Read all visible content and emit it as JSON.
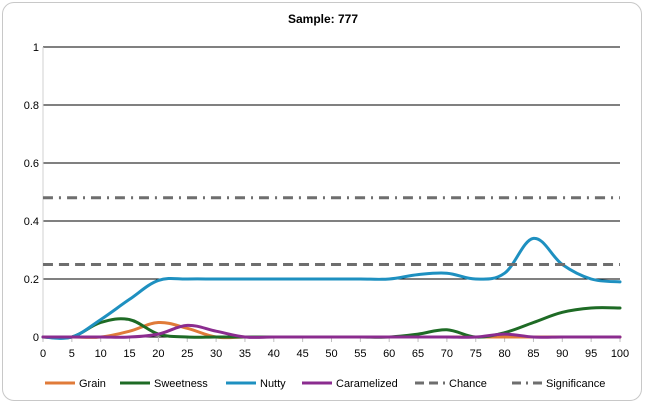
{
  "chart_data": {
    "type": "line",
    "title": "Sample: 777",
    "xlabel": "",
    "ylabel": "",
    "xlim": [
      0,
      100
    ],
    "ylim": [
      0,
      1
    ],
    "x_ticks": [
      0,
      5,
      10,
      15,
      20,
      25,
      30,
      35,
      40,
      45,
      50,
      55,
      60,
      65,
      70,
      75,
      80,
      85,
      90,
      95,
      100
    ],
    "y_ticks": [
      0,
      0.2,
      0.4,
      0.6,
      0.8,
      1
    ],
    "y_tick_labels": [
      "0",
      "0.2",
      "0.4",
      "0.6",
      "0.8",
      "1"
    ],
    "grid": "horizontal",
    "legend_position": "bottom",
    "x": [
      0,
      5,
      10,
      15,
      20,
      25,
      30,
      35,
      40,
      45,
      50,
      55,
      60,
      65,
      70,
      75,
      80,
      85,
      90,
      95,
      100
    ],
    "series": [
      {
        "name": "Grain",
        "color": "#e07b39",
        "style": "solid",
        "values": [
          0,
          0,
          0,
          0.02,
          0.05,
          0.03,
          0,
          0,
          0,
          0,
          0,
          0,
          0,
          0,
          0,
          0,
          0,
          0,
          0,
          0,
          0
        ]
      },
      {
        "name": "Sweetness",
        "color": "#1e6b25",
        "style": "solid",
        "values": [
          0,
          0,
          0.05,
          0.06,
          0.01,
          0,
          0,
          0,
          0,
          0,
          0,
          0,
          0,
          0.01,
          0.025,
          0,
          0.015,
          0.05,
          0.085,
          0.1,
          0.1
        ]
      },
      {
        "name": "Nutty",
        "color": "#1e90c0",
        "style": "solid",
        "values": [
          0,
          0,
          0.06,
          0.13,
          0.195,
          0.2,
          0.2,
          0.2,
          0.2,
          0.2,
          0.2,
          0.2,
          0.2,
          0.215,
          0.22,
          0.2,
          0.22,
          0.34,
          0.25,
          0.2,
          0.19
        ]
      },
      {
        "name": "Caramelized",
        "color": "#8b2c8f",
        "style": "solid",
        "values": [
          0,
          0,
          0,
          0,
          0.01,
          0.04,
          0.02,
          0,
          0,
          0,
          0,
          0,
          0,
          0,
          0,
          0,
          0.01,
          0,
          0,
          0,
          0
        ]
      },
      {
        "name": "Chance",
        "color": "#6e6e6e",
        "style": "dashed",
        "values": [
          0.25,
          0.25,
          0.25,
          0.25,
          0.25,
          0.25,
          0.25,
          0.25,
          0.25,
          0.25,
          0.25,
          0.25,
          0.25,
          0.25,
          0.25,
          0.25,
          0.25,
          0.25,
          0.25,
          0.25,
          0.25
        ]
      },
      {
        "name": "Significance",
        "color": "#6e6e6e",
        "style": "dashdot",
        "values": [
          0.48,
          0.48,
          0.48,
          0.48,
          0.48,
          0.48,
          0.48,
          0.48,
          0.48,
          0.48,
          0.48,
          0.48,
          0.48,
          0.48,
          0.48,
          0.48,
          0.48,
          0.48,
          0.48,
          0.48,
          0.48
        ]
      }
    ]
  }
}
